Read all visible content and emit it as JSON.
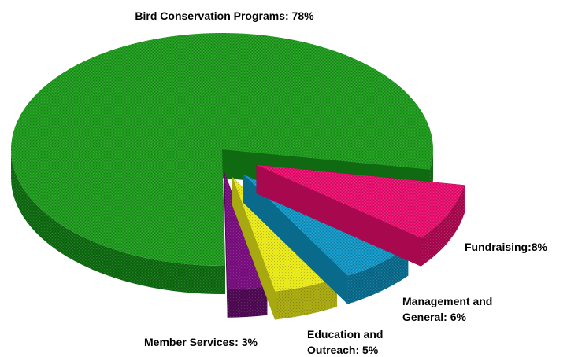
{
  "chart_data": {
    "type": "pie",
    "title": "",
    "slices": [
      {
        "label_lines": [
          "Bird Conservation Programs: 78%"
        ],
        "value": 78,
        "color": "#1f9a1f",
        "side": "#0f6a12"
      },
      {
        "label_lines": [
          "Fundraising:8%"
        ],
        "value": 8,
        "color": "#e8106e",
        "side": "#a8094e"
      },
      {
        "label_lines": [
          "Management and",
          "General: 6%"
        ],
        "value": 6,
        "color": "#1496c4",
        "side": "#0a6a8c"
      },
      {
        "label_lines": [
          "Education and",
          "Outreach: 5%"
        ],
        "value": 5,
        "color": "#e8e81a",
        "side": "#a8a810"
      },
      {
        "label_lines": [
          "Member Services: 3%"
        ],
        "value": 3,
        "color": "#7a1080",
        "side": "#4e0a52"
      }
    ]
  }
}
